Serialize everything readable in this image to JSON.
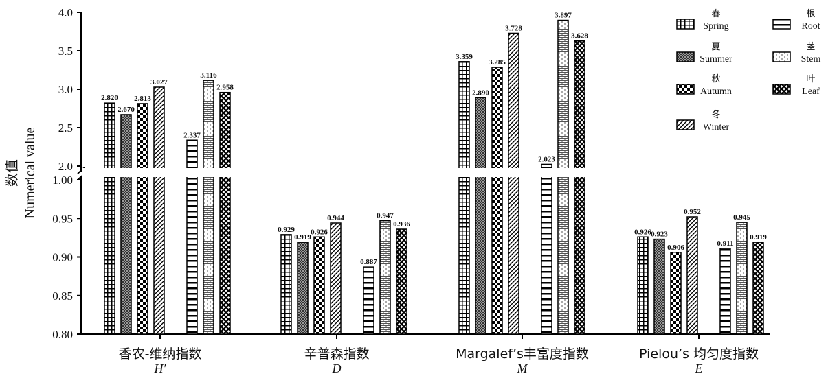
{
  "chart_data": {
    "type": "bar",
    "ylabel_cn": "数值",
    "ylabel_en": "Numerical value",
    "axis_break": {
      "lower_range": [
        0.8,
        1.0
      ],
      "upper_range": [
        2.0,
        4.0
      ],
      "lower_ticks": [
        "0.80",
        "0.85",
        "0.90",
        "0.95",
        "1.00"
      ],
      "upper_ticks": [
        "2.0",
        "2.5",
        "3.0",
        "3.5",
        "4.0"
      ]
    },
    "categories": [
      {
        "name": "香农-维纳指数",
        "symbol": "H′"
      },
      {
        "name": "辛普森指数",
        "symbol": "D"
      },
      {
        "name": "Margalef’s丰富度指数",
        "symbol": "M"
      },
      {
        "name": "Pielou’s 均匀度指数",
        "symbol": "E"
      }
    ],
    "series": [
      {
        "name_cn": "春",
        "name_en": "Spring",
        "pattern": "grid",
        "values": [
          2.82,
          0.929,
          3.359,
          0.926
        ],
        "labels": [
          "2.820",
          "0.929",
          "3.359",
          "0.926"
        ]
      },
      {
        "name_cn": "夏",
        "name_en": "Summer",
        "pattern": "dots",
        "values": [
          2.67,
          0.919,
          2.89,
          0.923
        ],
        "labels": [
          "2.670",
          "0.919",
          "2.890",
          "0.923"
        ]
      },
      {
        "name_cn": "秋",
        "name_en": "Autumn",
        "pattern": "checker",
        "values": [
          2.813,
          0.926,
          3.285,
          0.906
        ],
        "labels": [
          "2.813",
          "0.926",
          "3.285",
          "0.906"
        ]
      },
      {
        "name_cn": "冬",
        "name_en": "Winter",
        "pattern": "diag",
        "values": [
          3.027,
          0.944,
          3.728,
          0.952
        ],
        "labels": [
          "3.027",
          "0.944",
          "3.728",
          "0.952"
        ]
      },
      {
        "name_cn": "根",
        "name_en": "Root",
        "pattern": "hlines",
        "values": [
          2.337,
          0.887,
          2.023,
          0.911
        ],
        "labels": [
          "2.337",
          "0.887",
          "2.023",
          "0.911"
        ]
      },
      {
        "name_cn": "茎",
        "name_en": "Stem",
        "pattern": "brick",
        "values": [
          3.116,
          0.947,
          3.897,
          0.945
        ],
        "labels": [
          "3.116",
          "0.947",
          "3.897",
          "0.945"
        ]
      },
      {
        "name_cn": "叶",
        "name_en": "Leaf",
        "pattern": "crosshatch",
        "values": [
          2.958,
          0.936,
          3.628,
          0.919
        ],
        "labels": [
          "2.958",
          "0.936",
          "3.628",
          "0.919"
        ]
      }
    ],
    "legend_placement": "top-right",
    "grid": false
  }
}
